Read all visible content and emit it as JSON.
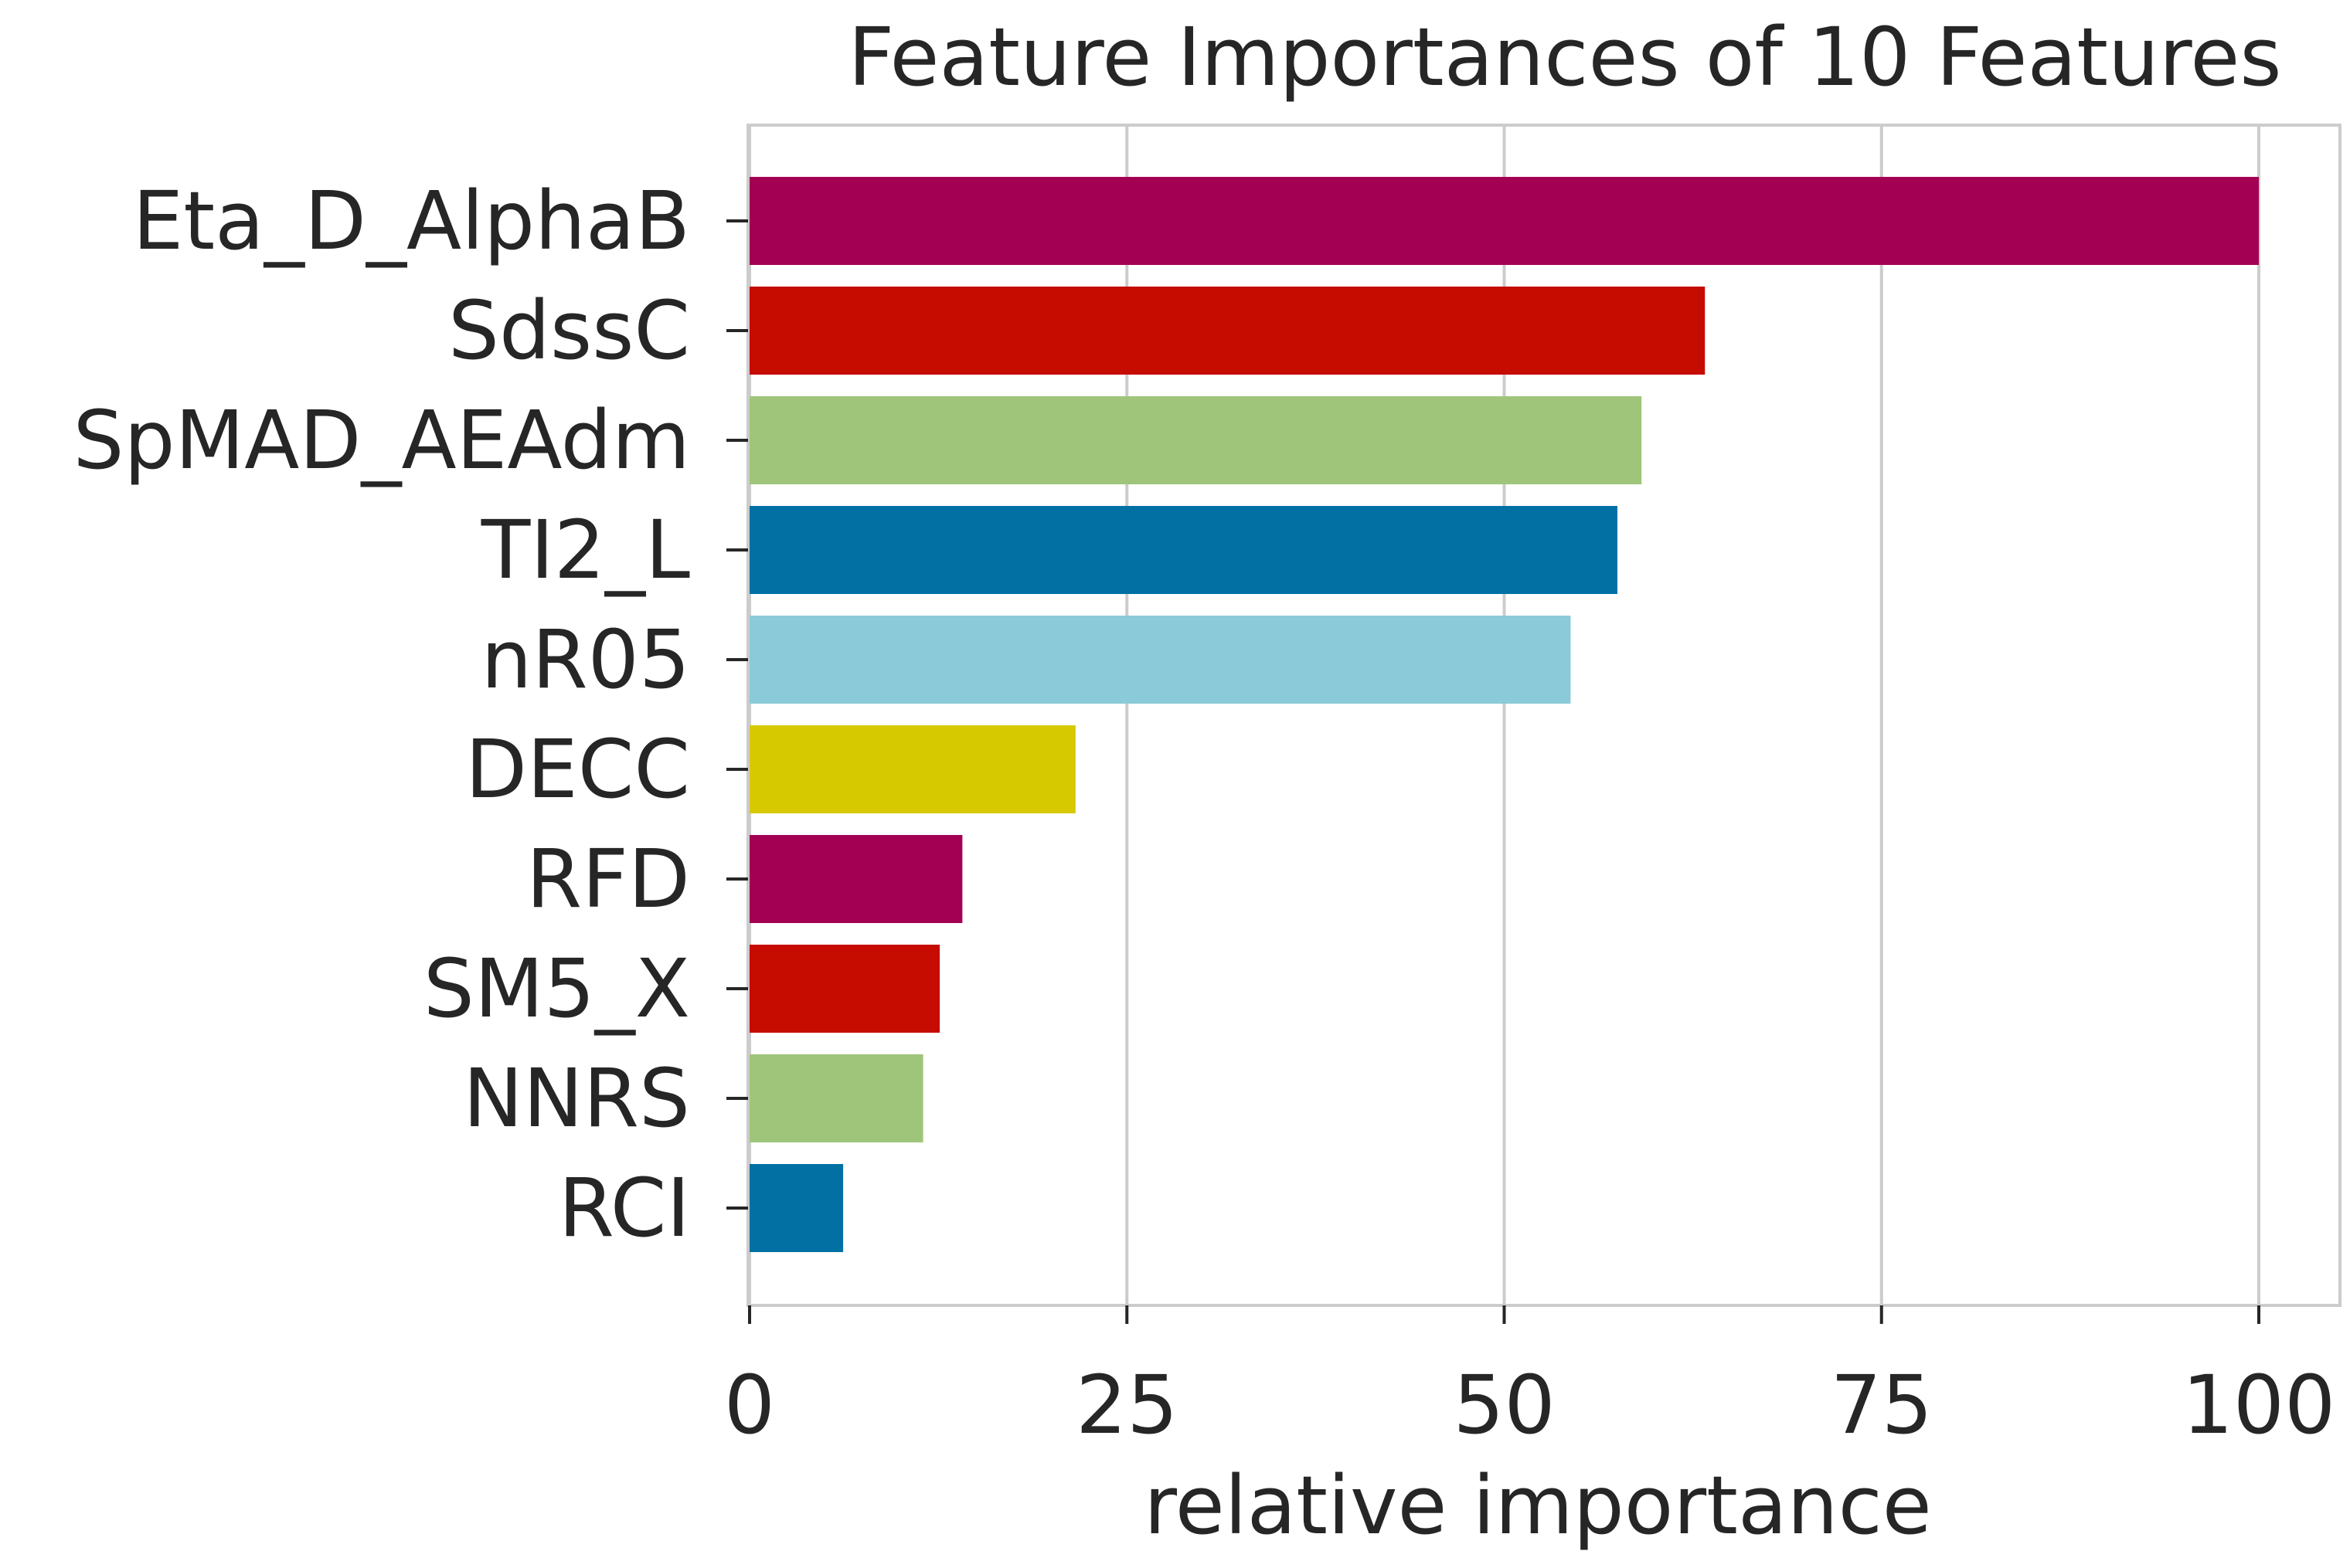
{
  "chart_data": {
    "type": "bar",
    "orientation": "horizontal",
    "title": "Feature Importances of 10 Features",
    "xlabel": "relative importance",
    "ylabel": "",
    "xlim": [
      0,
      105
    ],
    "xticks": [
      0,
      25,
      50,
      75,
      100
    ],
    "xtick_labels": [
      "0",
      "25",
      "50",
      "75",
      "100"
    ],
    "grid": "vertical",
    "categories": [
      "Eta_D_AlphaB",
      "SdssC",
      "SpMAD_AEAdm",
      "TI2_L",
      "nR05",
      "DECC",
      "RFD",
      "SM5_X",
      "NNRS",
      "RCI"
    ],
    "values": [
      100,
      63.3,
      59.1,
      57.5,
      54.4,
      21.6,
      14.1,
      12.6,
      11.5,
      6.2
    ],
    "colors": [
      "#a30054",
      "#c60b00",
      "#9fc57a",
      "#0270a3",
      "#8bcad9",
      "#d7c900",
      "#a30054",
      "#c60b00",
      "#9fc57a",
      "#0270a3"
    ]
  }
}
